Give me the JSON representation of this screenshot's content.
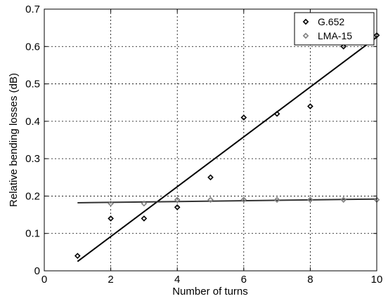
{
  "chart_data": {
    "type": "scatter",
    "xlabel": "Number of turns",
    "ylabel": "Relative bending losses (dB)",
    "xlim": [
      0,
      10
    ],
    "ylim": [
      0,
      0.7
    ],
    "xticks": [
      "0",
      "2",
      "4",
      "6",
      "8",
      "10"
    ],
    "yticks": [
      "0",
      "0.1",
      "0.2",
      "0.3",
      "0.4",
      "0.5",
      "0.6",
      "0.7"
    ],
    "grid": true,
    "legend_position": "top-right",
    "series": [
      {
        "name": "G.652",
        "color": "#000000",
        "marker": "diamond",
        "x": [
          1,
          2,
          3,
          4,
          5,
          6,
          7,
          8,
          9,
          10
        ],
        "y": [
          0.04,
          0.14,
          0.14,
          0.17,
          0.25,
          0.41,
          0.42,
          0.44,
          0.6,
          0.63
        ],
        "fit": {
          "x": [
            1,
            10
          ],
          "y": [
            0.025,
            0.625
          ],
          "color": "#000000"
        }
      },
      {
        "name": "LMA-15",
        "color": "#808080",
        "marker": "diamond",
        "x": [
          2,
          3,
          4,
          5,
          6,
          7,
          8,
          9,
          10
        ],
        "y": [
          0.18,
          0.18,
          0.19,
          0.19,
          0.19,
          0.19,
          0.19,
          0.19,
          0.19
        ],
        "fit": {
          "x": [
            1,
            10
          ],
          "y": [
            0.182,
            0.192
          ],
          "color": "#333333"
        }
      }
    ]
  }
}
